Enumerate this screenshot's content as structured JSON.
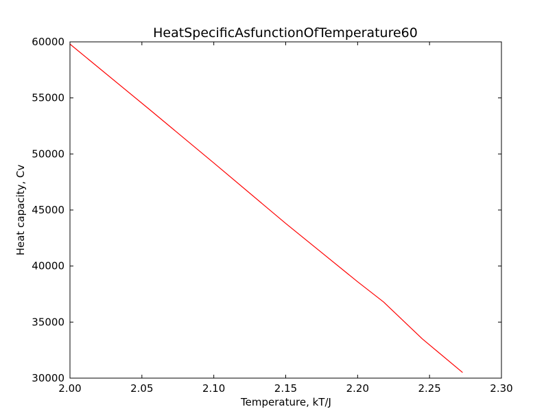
{
  "chart_data": {
    "type": "line",
    "title": "HeatSpecificAsfunctionOfTemperature60",
    "xlabel": "Temperature, kT/J",
    "ylabel": "Heat capacity, Cv",
    "xlim": [
      2.0,
      2.3
    ],
    "ylim": [
      30000,
      60000
    ],
    "grid": false,
    "x_ticks": [
      2.0,
      2.05,
      2.1,
      2.15,
      2.2,
      2.25,
      2.3
    ],
    "x_tick_labels": [
      "2.00",
      "2.05",
      "2.10",
      "2.15",
      "2.20",
      "2.25",
      "2.30"
    ],
    "y_ticks": [
      30000,
      35000,
      40000,
      45000,
      50000,
      55000,
      60000
    ],
    "y_tick_labels": [
      "30000",
      "35000",
      "40000",
      "45000",
      "50000",
      "55000",
      "60000"
    ],
    "series": [
      {
        "color": "#ff0000",
        "x": [
          2.0,
          2.055,
          2.1,
          2.15,
          2.2,
          2.218,
          2.245,
          2.273
        ],
        "y": [
          59800,
          54000,
          49200,
          43800,
          38600,
          36800,
          33500,
          30500
        ]
      }
    ]
  }
}
